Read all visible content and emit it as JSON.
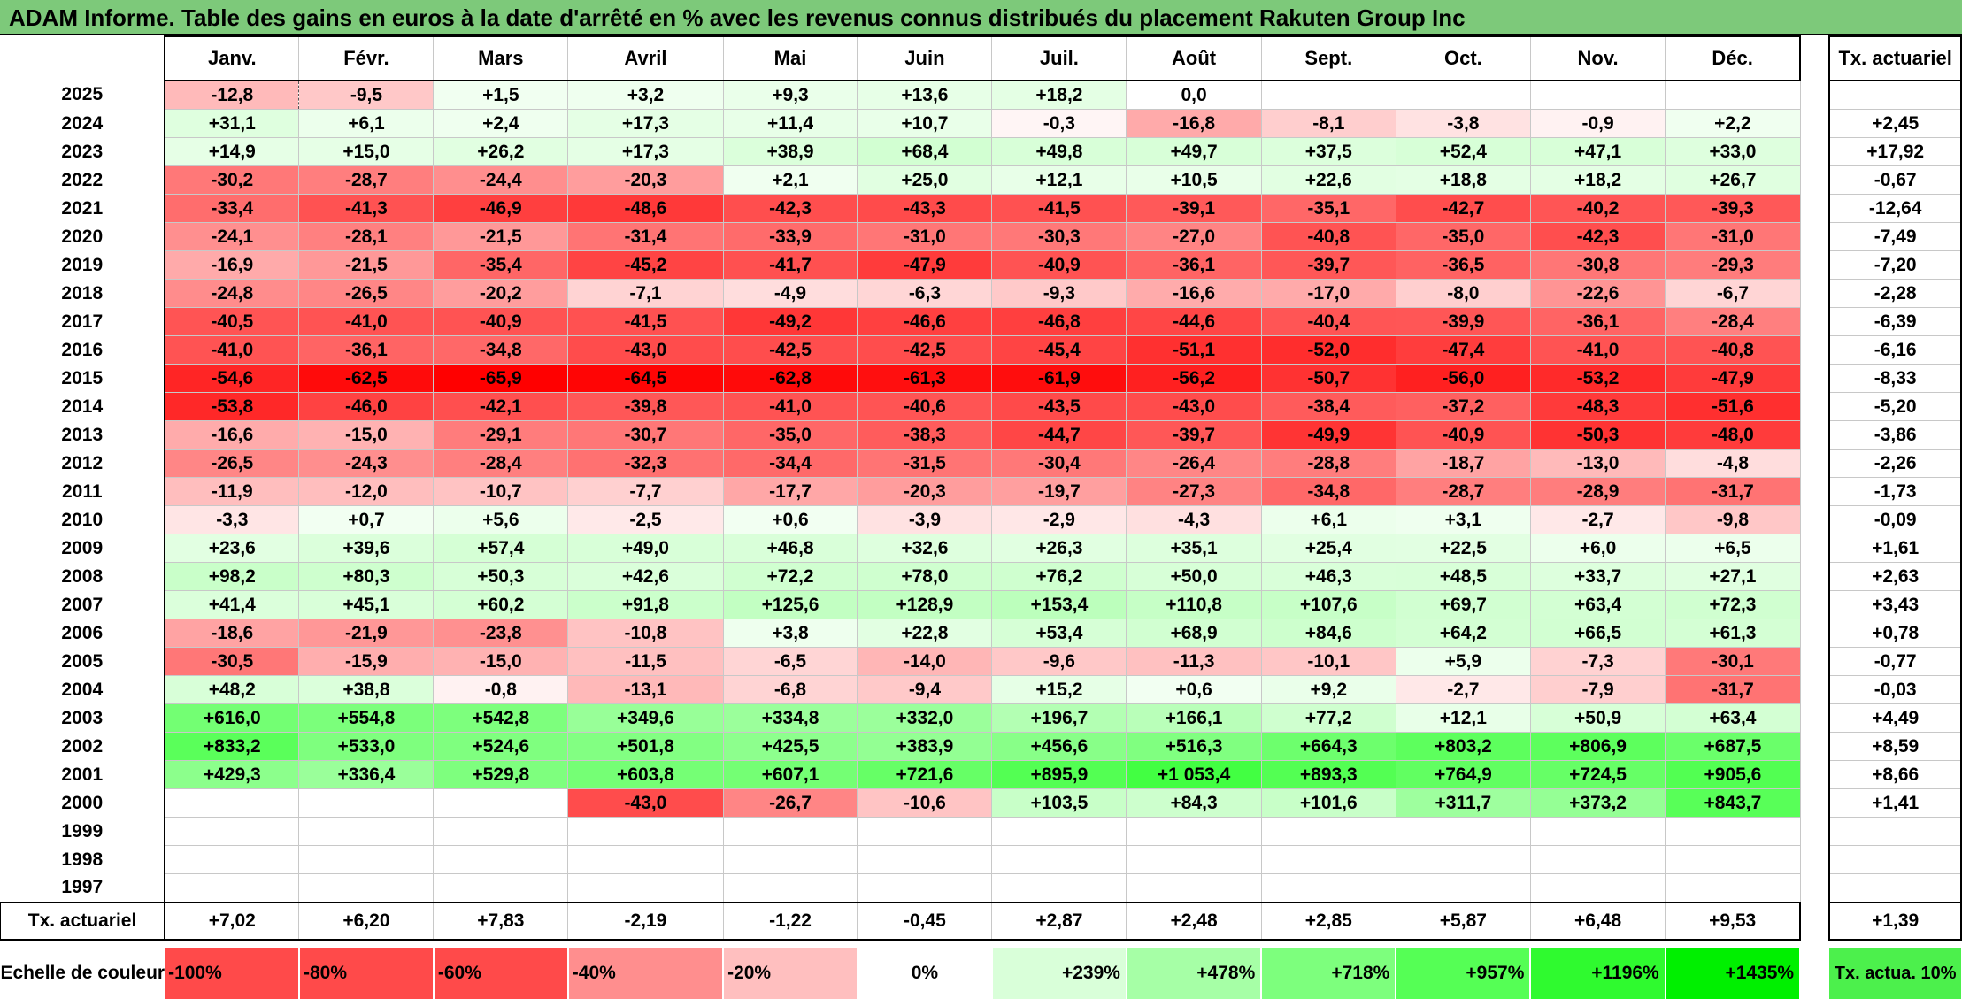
{
  "title": "ADAM Informe. Table des gains en euros à la date d'arrêté en % avec les revenus connus distribués du placement Rakuten Group Inc",
  "chart_data": {
    "type": "heatmap",
    "columns": [
      "Janv.",
      "Févr.",
      "Mars",
      "Avril",
      "Mai",
      "Juin",
      "Juil.",
      "Août",
      "Sept.",
      "Oct.",
      "Nov.",
      "Déc."
    ],
    "rate_column_label": "Tx. actuariel",
    "rows": [
      {
        "year": "2025",
        "values": [
          "-12,8",
          "-9,5",
          "+1,5",
          "+3,2",
          "+9,3",
          "+13,6",
          "+18,2",
          "0,0",
          "",
          "",
          "",
          ""
        ],
        "rate": ""
      },
      {
        "year": "2024",
        "values": [
          "+31,1",
          "+6,1",
          "+2,4",
          "+17,3",
          "+11,4",
          "+10,7",
          "-0,3",
          "-16,8",
          "-8,1",
          "-3,8",
          "-0,9",
          "+2,2"
        ],
        "rate": "+2,45"
      },
      {
        "year": "2023",
        "values": [
          "+14,9",
          "+15,0",
          "+26,2",
          "+17,3",
          "+38,9",
          "+68,4",
          "+49,8",
          "+49,7",
          "+37,5",
          "+52,4",
          "+47,1",
          "+33,0"
        ],
        "rate": "+17,92"
      },
      {
        "year": "2022",
        "values": [
          "-30,2",
          "-28,7",
          "-24,4",
          "-20,3",
          "+2,1",
          "+25,0",
          "+12,1",
          "+10,5",
          "+22,6",
          "+18,8",
          "+18,2",
          "+26,7"
        ],
        "rate": "-0,67"
      },
      {
        "year": "2021",
        "values": [
          "-33,4",
          "-41,3",
          "-46,9",
          "-48,6",
          "-42,3",
          "-43,3",
          "-41,5",
          "-39,1",
          "-35,1",
          "-42,7",
          "-40,2",
          "-39,3"
        ],
        "rate": "-12,64"
      },
      {
        "year": "2020",
        "values": [
          "-24,1",
          "-28,1",
          "-21,5",
          "-31,4",
          "-33,9",
          "-31,0",
          "-30,3",
          "-27,0",
          "-40,8",
          "-35,0",
          "-42,3",
          "-31,0"
        ],
        "rate": "-7,49"
      },
      {
        "year": "2019",
        "values": [
          "-16,9",
          "-21,5",
          "-35,4",
          "-45,2",
          "-41,7",
          "-47,9",
          "-40,9",
          "-36,1",
          "-39,7",
          "-36,5",
          "-30,8",
          "-29,3"
        ],
        "rate": "-7,20"
      },
      {
        "year": "2018",
        "values": [
          "-24,8",
          "-26,5",
          "-20,2",
          "-7,1",
          "-4,9",
          "-6,3",
          "-9,3",
          "-16,6",
          "-17,0",
          "-8,0",
          "-22,6",
          "-6,7"
        ],
        "rate": "-2,28"
      },
      {
        "year": "2017",
        "values": [
          "-40,5",
          "-41,0",
          "-40,9",
          "-41,5",
          "-49,2",
          "-46,6",
          "-46,8",
          "-44,6",
          "-40,4",
          "-39,9",
          "-36,1",
          "-28,4"
        ],
        "rate": "-6,39"
      },
      {
        "year": "2016",
        "values": [
          "-41,0",
          "-36,1",
          "-34,8",
          "-43,0",
          "-42,5",
          "-42,5",
          "-45,4",
          "-51,1",
          "-52,0",
          "-47,4",
          "-41,0",
          "-40,8"
        ],
        "rate": "-6,16"
      },
      {
        "year": "2015",
        "values": [
          "-54,6",
          "-62,5",
          "-65,9",
          "-64,5",
          "-62,8",
          "-61,3",
          "-61,9",
          "-56,2",
          "-50,7",
          "-56,0",
          "-53,2",
          "-47,9"
        ],
        "rate": "-8,33"
      },
      {
        "year": "2014",
        "values": [
          "-53,8",
          "-46,0",
          "-42,1",
          "-39,8",
          "-41,0",
          "-40,6",
          "-43,5",
          "-43,0",
          "-38,4",
          "-37,2",
          "-48,3",
          "-51,6"
        ],
        "rate": "-5,20"
      },
      {
        "year": "2013",
        "values": [
          "-16,6",
          "-15,0",
          "-29,1",
          "-30,7",
          "-35,0",
          "-38,3",
          "-44,7",
          "-39,7",
          "-49,9",
          "-40,9",
          "-50,3",
          "-48,0"
        ],
        "rate": "-3,86"
      },
      {
        "year": "2012",
        "values": [
          "-26,5",
          "-24,3",
          "-28,4",
          "-32,3",
          "-34,4",
          "-31,5",
          "-30,4",
          "-26,4",
          "-28,8",
          "-18,7",
          "-13,0",
          "-4,8"
        ],
        "rate": "-2,26"
      },
      {
        "year": "2011",
        "values": [
          "-11,9",
          "-12,0",
          "-10,7",
          "-7,7",
          "-17,7",
          "-20,3",
          "-19,7",
          "-27,3",
          "-34,8",
          "-28,7",
          "-28,9",
          "-31,7"
        ],
        "rate": "-1,73"
      },
      {
        "year": "2010",
        "values": [
          "-3,3",
          "+0,7",
          "+5,6",
          "-2,5",
          "+0,6",
          "-3,9",
          "-2,9",
          "-4,3",
          "+6,1",
          "+3,1",
          "-2,7",
          "-9,8"
        ],
        "rate": "-0,09"
      },
      {
        "year": "2009",
        "values": [
          "+23,6",
          "+39,6",
          "+57,4",
          "+49,0",
          "+46,8",
          "+32,6",
          "+26,3",
          "+35,1",
          "+25,4",
          "+22,5",
          "+6,0",
          "+6,5"
        ],
        "rate": "+1,61"
      },
      {
        "year": "2008",
        "values": [
          "+98,2",
          "+80,3",
          "+50,3",
          "+42,6",
          "+72,2",
          "+78,0",
          "+76,2",
          "+50,0",
          "+46,3",
          "+48,5",
          "+33,7",
          "+27,1"
        ],
        "rate": "+2,63"
      },
      {
        "year": "2007",
        "values": [
          "+41,4",
          "+45,1",
          "+60,2",
          "+91,8",
          "+125,6",
          "+128,9",
          "+153,4",
          "+110,8",
          "+107,6",
          "+69,7",
          "+63,4",
          "+72,3"
        ],
        "rate": "+3,43"
      },
      {
        "year": "2006",
        "values": [
          "-18,6",
          "-21,9",
          "-23,8",
          "-10,8",
          "+3,8",
          "+22,8",
          "+53,4",
          "+68,9",
          "+84,6",
          "+64,2",
          "+66,5",
          "+61,3"
        ],
        "rate": "+0,78"
      },
      {
        "year": "2005",
        "values": [
          "-30,5",
          "-15,9",
          "-15,0",
          "-11,5",
          "-6,5",
          "-14,0",
          "-9,6",
          "-11,3",
          "-10,1",
          "+5,9",
          "-7,3",
          "-30,1"
        ],
        "rate": "-0,77"
      },
      {
        "year": "2004",
        "values": [
          "+48,2",
          "+38,8",
          "-0,8",
          "-13,1",
          "-6,8",
          "-9,4",
          "+15,2",
          "+0,6",
          "+9,2",
          "-2,7",
          "-7,9",
          "-31,7"
        ],
        "rate": "-0,03"
      },
      {
        "year": "2003",
        "values": [
          "+616,0",
          "+554,8",
          "+542,8",
          "+349,6",
          "+334,8",
          "+332,0",
          "+196,7",
          "+166,1",
          "+77,2",
          "+12,1",
          "+50,9",
          "+63,4"
        ],
        "rate": "+4,49"
      },
      {
        "year": "2002",
        "values": [
          "+833,2",
          "+533,0",
          "+524,6",
          "+501,8",
          "+425,5",
          "+383,9",
          "+456,6",
          "+516,3",
          "+664,3",
          "+803,2",
          "+806,9",
          "+687,5"
        ],
        "rate": "+8,59"
      },
      {
        "year": "2001",
        "values": [
          "+429,3",
          "+336,4",
          "+529,8",
          "+603,8",
          "+607,1",
          "+721,6",
          "+895,9",
          "+1 053,4",
          "+893,3",
          "+764,9",
          "+724,5",
          "+905,6"
        ],
        "rate": "+8,66"
      },
      {
        "year": "2000",
        "values": [
          "",
          "",
          "",
          "-43,0",
          "-26,7",
          "-10,6",
          "+103,5",
          "+84,3",
          "+101,6",
          "+311,7",
          "+373,2",
          "+843,7"
        ],
        "rate": "+1,41"
      },
      {
        "year": "1999",
        "values": [
          "",
          "",
          "",
          "",
          "",
          "",
          "",
          "",
          "",
          "",
          "",
          ""
        ],
        "rate": ""
      },
      {
        "year": "1998",
        "values": [
          "",
          "",
          "",
          "",
          "",
          "",
          "",
          "",
          "",
          "",
          "",
          ""
        ],
        "rate": ""
      },
      {
        "year": "1997",
        "values": [
          "",
          "",
          "",
          "",
          "",
          "",
          "",
          "",
          "",
          "",
          "",
          ""
        ],
        "rate": ""
      }
    ],
    "annual_rate_row": {
      "label": "Tx. actuariel",
      "values": [
        "+7,02",
        "+6,20",
        "+7,83",
        "-2,19",
        "-1,22",
        "-0,45",
        "+2,87",
        "+2,48",
        "+2,85",
        "+5,87",
        "+6,48",
        "+9,53"
      ],
      "rate": "+1,39"
    },
    "color_scale": {
      "label": "Echelle de couleur",
      "steps": [
        {
          "label": "-100%",
          "color": "#ff4a4a"
        },
        {
          "label": "-80%",
          "color": "#ff4a4a"
        },
        {
          "label": "-60%",
          "color": "#ff4a4a"
        },
        {
          "label": "-40%",
          "color": "#ff8e8e"
        },
        {
          "label": "-20%",
          "color": "#ffbfbf"
        },
        {
          "label": "0%",
          "color": "#ffffff"
        },
        {
          "label": "+239%",
          "color": "#d9ffd9"
        },
        {
          "label": "+478%",
          "color": "#a6ffa6"
        },
        {
          "label": "+718%",
          "color": "#7dff7d"
        },
        {
          "label": "+957%",
          "color": "#55ff55"
        },
        {
          "label": "+1196%",
          "color": "#2ffa2f"
        },
        {
          "label": "+1435%",
          "color": "#00f000"
        }
      ],
      "rate_scale_label": "Tx. actua. 10%",
      "rate_scale_color": "#4cf04c"
    },
    "colors": {
      "title_bar": "#7dc97a",
      "negative_max": "#ff0000",
      "positive_max": "#00ee00",
      "neutral": "#ffffff"
    }
  }
}
